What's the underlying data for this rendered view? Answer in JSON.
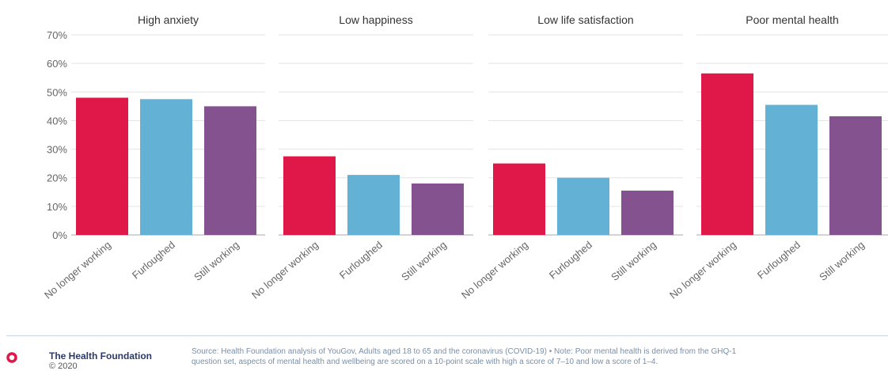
{
  "chart_data": {
    "type": "bar",
    "y_ticks": [
      "0%",
      "10%",
      "20%",
      "30%",
      "40%",
      "50%",
      "60%",
      "70%"
    ],
    "ylim": [
      0,
      70
    ],
    "grid": true,
    "categories": [
      "No longer working",
      "Furloughed",
      "Still working"
    ],
    "colors": [
      "#e0184a",
      "#63b2d6",
      "#83528f"
    ],
    "panels": [
      {
        "title": "High anxiety",
        "values": [
          48,
          47.5,
          45
        ]
      },
      {
        "title": "Low happiness",
        "values": [
          27.5,
          21,
          18
        ]
      },
      {
        "title": "Low life satisfaction",
        "values": [
          25,
          20,
          15.5
        ]
      },
      {
        "title": "Poor mental health",
        "values": [
          56.5,
          45.5,
          41.5
        ]
      }
    ]
  },
  "footer": {
    "org_name": "The Health Foundation",
    "copyright": "© 2020",
    "source_line1": "Source: Health Foundation analysis of YouGov, Adults aged 18 to 65 and the coronavirus (COVID-19) • Note: Poor mental health is derived from the GHQ-1",
    "source_line2": "question set, aspects of mental health and wellbeing are scored on a 10-point scale with high a score of 7–10 and low a score of 1–4."
  }
}
